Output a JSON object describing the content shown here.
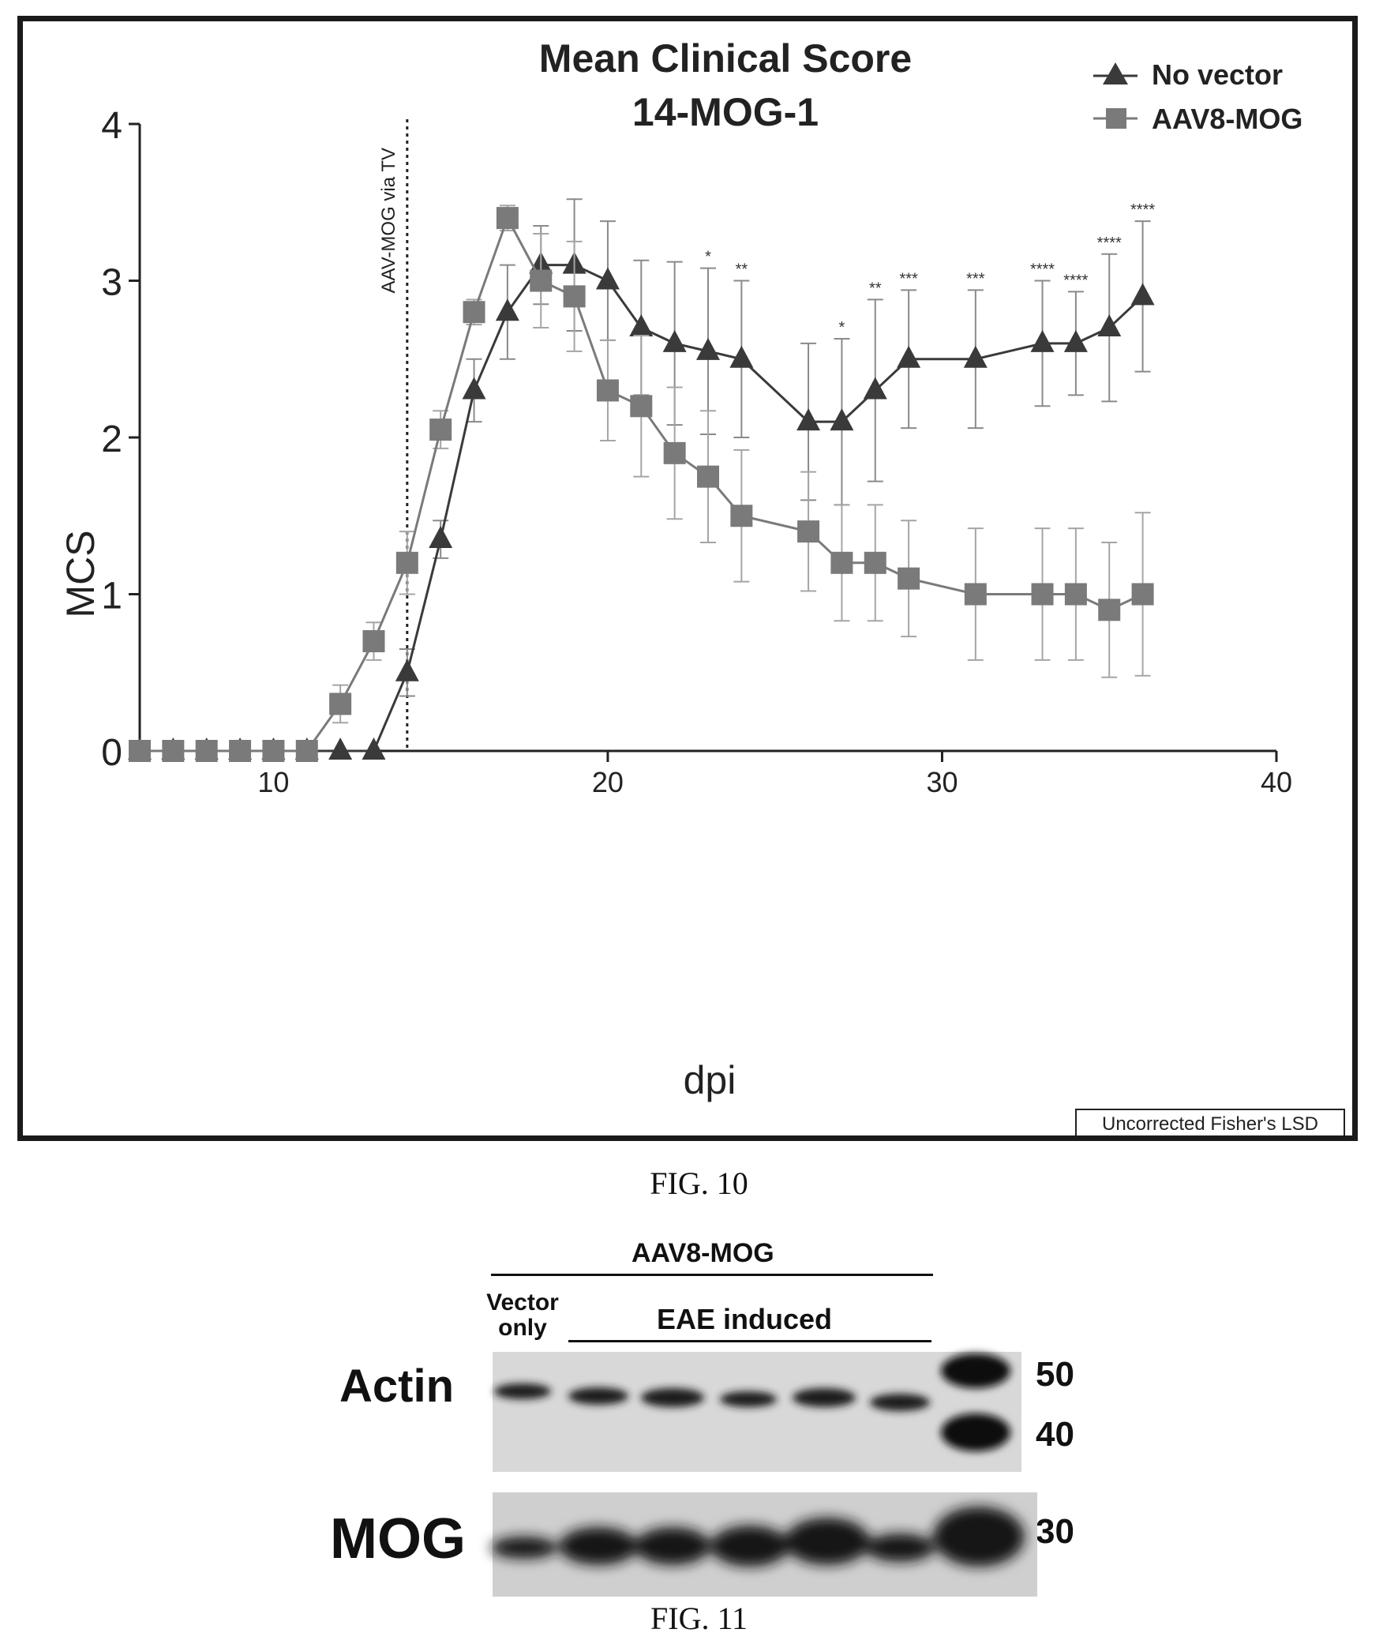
{
  "fig10": {
    "caption": "FIG. 10",
    "stats_note": "Uncorrected Fisher's LSD",
    "injection_label": "AAV-MOG via TV"
  },
  "chart_data": {
    "type": "line",
    "title": "Mean Clinical Score",
    "subtitle": "14-MOG-1",
    "xlabel": "dpi",
    "ylabel": "MCS",
    "xlim": [
      6,
      40
    ],
    "ylim": [
      0,
      4
    ],
    "xticks": [
      10,
      20,
      30,
      40
    ],
    "yticks": [
      0,
      1,
      2,
      3,
      4
    ],
    "grid": false,
    "legend_position": "top-right",
    "injection_day": 14,
    "series": [
      {
        "name": "No vector",
        "marker": "triangle",
        "color": "#3a3a3a",
        "x": [
          6,
          7,
          8,
          9,
          10,
          11,
          12,
          13,
          14,
          15,
          16,
          17,
          18,
          19,
          20,
          21,
          22,
          23,
          24,
          26,
          27,
          28,
          29,
          31,
          33,
          34,
          35,
          36
        ],
        "y": [
          0,
          0,
          0,
          0,
          0,
          0,
          0,
          0,
          0.5,
          1.35,
          2.3,
          2.8,
          3.1,
          3.1,
          3.0,
          2.7,
          2.6,
          2.55,
          2.5,
          2.1,
          2.1,
          2.3,
          2.5,
          2.5,
          2.6,
          2.6,
          2.7,
          2.9
        ],
        "err": [
          0,
          0,
          0,
          0,
          0,
          0,
          0,
          0,
          0.15,
          0.12,
          0.2,
          0.3,
          0.25,
          0.42,
          0.38,
          0.43,
          0.52,
          0.53,
          0.5,
          0.5,
          0.53,
          0.58,
          0.44,
          0.44,
          0.4,
          0.33,
          0.47,
          0.48
        ]
      },
      {
        "name": "AAV8-MOG",
        "marker": "square",
        "color": "#7a7a7a",
        "x": [
          6,
          7,
          8,
          9,
          10,
          11,
          12,
          13,
          14,
          15,
          16,
          17,
          18,
          19,
          20,
          21,
          22,
          23,
          24,
          26,
          27,
          28,
          29,
          31,
          33,
          34,
          35,
          36
        ],
        "y": [
          0,
          0,
          0,
          0,
          0,
          0,
          0.3,
          0.7,
          1.2,
          2.05,
          2.8,
          3.4,
          3.0,
          2.9,
          2.3,
          2.2,
          1.9,
          1.75,
          1.5,
          1.4,
          1.2,
          1.2,
          1.1,
          1.0,
          1.0,
          1.0,
          0.9,
          1.0
        ],
        "err": [
          0,
          0,
          0,
          0,
          0,
          0,
          0.12,
          0.12,
          0.2,
          0.12,
          0.08,
          0.08,
          0.3,
          0.35,
          0.32,
          0.45,
          0.42,
          0.42,
          0.42,
          0.38,
          0.37,
          0.37,
          0.37,
          0.42,
          0.42,
          0.42,
          0.43,
          0.52
        ]
      }
    ],
    "significance": [
      {
        "x": 23,
        "label": "*"
      },
      {
        "x": 24,
        "label": "**"
      },
      {
        "x": 27,
        "label": "*"
      },
      {
        "x": 28,
        "label": "**"
      },
      {
        "x": 29,
        "label": "***"
      },
      {
        "x": 31,
        "label": "***"
      },
      {
        "x": 33,
        "label": "****"
      },
      {
        "x": 34,
        "label": "****"
      },
      {
        "x": 35,
        "label": "****"
      },
      {
        "x": 36,
        "label": "****"
      }
    ]
  },
  "fig11": {
    "caption": "FIG. 11",
    "group_label": "AAV8-MOG",
    "vector_only_line1": "Vector",
    "vector_only_line2": "only",
    "eae_label": "EAE induced",
    "row1_label": "Actin",
    "row2_label": "MOG",
    "markers": [
      "50",
      "40",
      "30"
    ]
  }
}
